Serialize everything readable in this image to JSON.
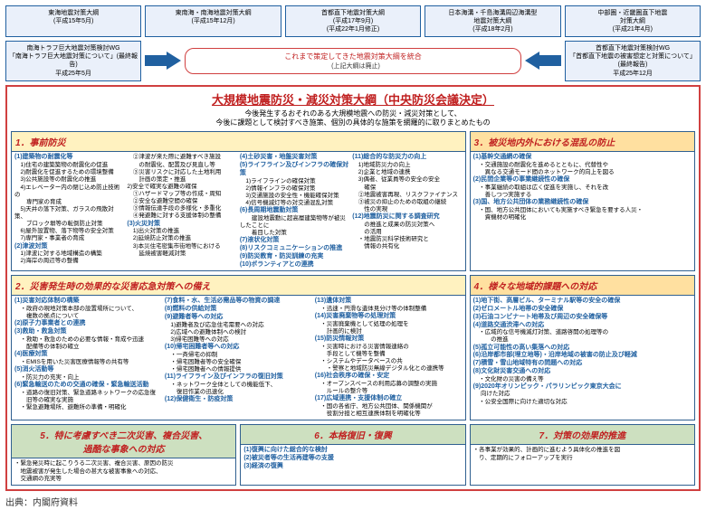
{
  "top_boxes": [
    {
      "title": "東海地震対策大綱",
      "date": "(平成15年5月)"
    },
    {
      "title": "東南海・南海地震対策大綱",
      "date": "(平成15年12月)"
    },
    {
      "title": "首都直下地震対策大綱",
      "date": "(平成17年9月)\n(平成22年1月修正)"
    },
    {
      "title": "日本海溝・千島海溝周辺海溝型\n地震対策大綱",
      "date": "(平成18年2月)"
    },
    {
      "title": "中部圏・近畿圏直下地震\n対策大綱",
      "date": "(平成21年4月)"
    }
  ],
  "left_wg": {
    "l1": "南海トラフ巨大地震対策検討WG",
    "l2": "「南海トラフ巨大地震対策について」(最終報告)",
    "l3": "平成25年5月"
  },
  "right_wg": {
    "l1": "首都直下地震対策検討WG",
    "l2": "「首都直下地震の被害想定と対策について」\n(最終報告)",
    "l3": "平成25年12月"
  },
  "merge": {
    "title": "これまで策定してきた地震対策大綱を統合",
    "sub": "(上記大綱は廃止)"
  },
  "main": {
    "title": "大規模地震防災・減災対策大綱（中央防災会議決定）",
    "sub": "今後発生するおそれのある大規模地震への防災・減災対策として、\n今後に課題として検討すべき施策、個別の具体的な施策を網羅的に取りまとめたもの"
  },
  "s1": {
    "hdr": "1．事前防災",
    "c1": "(1)建築物の耐震化等\n　1)住宅の建築築物の耐震化の促進\n　2)耐震化を促進するための環境整備\n　3)公共施設等の耐震化の推進\n　4)エレベーター内の閉じ込め防止技術の\n　　専門家の育成\n　5)天井の落下対策、ガラスの飛散対策、\n　　ブロック塀等の転倒防止対策\n　6)屋外設置物、落下物等の安全対策\n　7)専門家・事業者の育成\n(2)津波対策\n　1)津波に対する地域構造の構築\n　2)海岸の周辺等の整備",
    "c2": "　②津波が来た際に避難すべき施設\n　　の耐震化、配置及び見直し等\n　③災害リスクに対応した土地利用\n　　計画の策定・推進\n2)安全で確実な避難の確保\n　①ハザードマップ等の作成・周知\n　②安全な避難空間の確保\n　③情報伝達手段の多様化・多重化\n　④発避難に対する支援体制の整備\n(3)火災対策\n　1)出火対策の推進\n　2)延焼防止対策の推進\n　3)本災住宅密集市街地等における\n　　延焼被害軽減対策",
    "c3": "(4)土砂災害・地盤災害対策\n(5)ライフライン及びインフラの確保対策\n　1)ライフラインの確保対策\n　2)情報インフラの確保対策\n　3)交通施設の安全性・機能確保対策\n　4)信号機滅灯等の対交通混乱対策\n(6)長周期地震動対策\n　　建設地震動に超高層建築物等が被災したことに\n　　着目した対策\n(7)液状化対策\n(8)リスクコミュニケーションの推進\n(9)防災教育・防災訓練の充実\n(10)ボランティアとの連携",
    "c4": "(11)総合的な防災力の向上\n　1)地域防災力の向上\n　2)企業と地域の連携\n　3)偶者、従業員等の安全の安全\n　　確保\n　②地震被害再現、リスクファイナンス\n　③被災の抑止のための取組の継続\n　　性の実現\n(12)地震防災に関する調査研究\n　　の推進と成果の防災対策へ\n　　の活用\n　・地震防災科学技術研究と\n　　情報の共有化"
  },
  "s3": {
    "hdr": "3．被災地内外における混乱の防止",
    "body": "(1)基幹交通網の確保\n　・交通施設の耐震化を進めるとともに、代替性や\n　　異なる交通モード間のネットワーク的向上を図る\n(2)民間企業等の事業継続性の確保\n　・事業継続の取組は広く促進を実施し、それを改\n　　善しつつ実施する\n(3)国、地方公共団体の業務継続性の確保\n　・国、地方公共団体においても実施すべき緊急を要する人災・\n　　資機材の明確化"
  },
  "s2": {
    "hdr": "2．災害発生時の効果的な災害応急対策への備え",
    "c1": "(1)災害対応体制の構築\n　・政府の現地対策本部の設置場所について、\n　　複数の拠点について\n(2)原子力事業者との連携\n(3)救助・救急対策\n　・救助・救急のための必要な情報・育成や迅速\n　　配備等の体制の確立\n(4)医療対策\n　・EMISを用いた災害医療情報等の共有等\n(5)消火活動等\n　・防災力の充実・向上\n(6)緊急輸送のための交通の確保・緊急輸送活動\n　・道路の復旧対策、緊急道路ネットワークの応急復\n　　旧等の確実な実施\n　・緊急避難場所、避難所の準備・明確化",
    "c2": "(7)食料・水、生活必需品等の物資の調達\n(8)燃料の供給対策\n(9)避難者等への対応\n　1)避難者及び応急住宅需要への対応\n　2)広域への避難体制への検討\n　3)帰宅困難等への対応\n(10)帰宅困難者等への対応\n　・一斉帰宅の抑制\n　・帰宅困難者等の安全確保\n　・帰宅困難者への情報提供\n(11)ライフライン及びインフラの復旧対策\n　・ネットワーク全体としての機能低下、\n　　復旧作業の迅速化\n(12)保健衛生・防疫対策",
    "c3": "(13)遺体対策\n　・迅速・円滑な遺体見分け等の体制整備\n(14)災害廃棄物等の処理対策\n　・災害廃棄機として処理の処理を\n　　計画的に検討\n(15)防災情報対策\n　・災害時における災害情報連絡の\n　　手段として機等を整備\n　・システムやデータベースの共\n　　・警察と地域防災無線デジタル化との連携等\n(16)社会秩序の確保・安定\n　・オープンスペースの利用応募の調整の実施\n　　ルールの整介等\n(17)広域連携・支援体制の確立\n　・国の各省庁、地方公共団体、関係機関が\n　　役割分担と相互連携体制を明確化等"
  },
  "s4": {
    "hdr": "4．様々な地域的課題への対応",
    "body": "(1)地下街、高層ビル、ターミナル駅等の安全の確保\n(2)ゼロメートル地帯の安全確保\n(3)石油コンビナート地帯及び周辺の安全確保等\n(4)道路交通渋滞への対応\n　・広域的な信号機滅灯対策、道路啓開の処理等の\n　　　の推進\n(5)孤立可能性の高い集落への対応\n(6)沿岸都市部(埋立地等)・沿岸地域の被害の防止及び軽減\n(7)積雪・雪山地域特有の問題への対応\n(8)文化財災害交通への対応\n　・文化財の災害の備え等\n(9)2020年オリンピック・パラリンピック東京大会に\n　 向けた対応\n　・公安全国際に向けた適切な対応"
  },
  "s5": {
    "hdr": "5．特に考慮すべき二次災害、複合災害、\n過酷な事象への対応",
    "body": "・緊急発災時に起こりうる二次災害、複合災害、原因の防災\n　地震被害が発生した場合の甚大な被害事象への対応、\n　交通網の充実等"
  },
  "s6": {
    "hdr": "6．本格復旧・復興",
    "body": "(1)復興に向けた総合的な検討\n(2)被災者等の生活再建等の支援\n(3)経済の復興"
  },
  "s7": {
    "hdr": "7．対策の効果的推進",
    "body": "・各事業が効果的、計画的に進むよう具体化の推進を図\n　り、定期的にフォローアップを実行"
  },
  "source": "出典：内閣府資料",
  "colors": {
    "blue_border": "#2060a0",
    "blue_bg": "#eaf0fa",
    "red": "#c02020",
    "red_border": "#d04040",
    "yellow1": "#fff2c0",
    "yellow2": "#ffe0a0",
    "green": "#cde0c0"
  }
}
